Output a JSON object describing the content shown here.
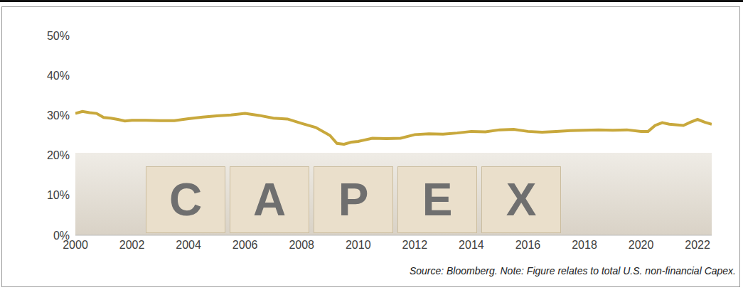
{
  "chart_data": {
    "type": "line",
    "annotation": "Source: Bloomberg.  Note: Figure relates to total U.S. non-financial Capex.",
    "watermark": "CAPEX",
    "x": [
      2000,
      2000.25,
      2000.5,
      2000.75,
      2001,
      2001.25,
      2001.5,
      2001.75,
      2002,
      2002.5,
      2003,
      2003.5,
      2004,
      2004.5,
      2005,
      2005.5,
      2006,
      2006.5,
      2007,
      2007.5,
      2008,
      2008.5,
      2009,
      2009.25,
      2009.5,
      2009.75,
      2010,
      2010.5,
      2011,
      2011.5,
      2012,
      2012.5,
      2013,
      2013.5,
      2014,
      2014.5,
      2015,
      2015.5,
      2016,
      2016.5,
      2017,
      2017.5,
      2018,
      2018.5,
      2019,
      2019.5,
      2020,
      2020.25,
      2020.5,
      2020.75,
      2021,
      2021.5,
      2021.75,
      2022,
      2022.25,
      2022.5
    ],
    "values": [
      30.5,
      31,
      30.7,
      30.5,
      29.5,
      29.3,
      29,
      28.6,
      28.8,
      28.8,
      28.7,
      28.7,
      29.2,
      29.6,
      29.9,
      30.1,
      30.5,
      30,
      29.3,
      29.1,
      28,
      27,
      25,
      23,
      22.8,
      23.3,
      23.5,
      24.3,
      24.2,
      24.3,
      25.2,
      25.4,
      25.3,
      25.6,
      26,
      25.9,
      26.4,
      26.5,
      26,
      25.8,
      26,
      26.2,
      26.3,
      26.4,
      26.3,
      26.4,
      26,
      26,
      27.5,
      28.2,
      27.8,
      27.5,
      28.3,
      29,
      28.3,
      27.8
    ],
    "color": "#c8a83c",
    "xlim": [
      2000,
      2022.5
    ],
    "xticks": [
      2000,
      2002,
      2004,
      2006,
      2008,
      2010,
      2012,
      2014,
      2016,
      2018,
      2020,
      2022
    ],
    "ylim": [
      0,
      50
    ],
    "yticks": [
      {
        "value": 0,
        "label": "0%"
      },
      {
        "value": 10,
        "label": "10%"
      },
      {
        "value": 20,
        "label": "20%"
      },
      {
        "value": 30,
        "label": "30%"
      },
      {
        "value": 40,
        "label": "40%"
      },
      {
        "value": 50,
        "label": "50%"
      }
    ],
    "grid": false
  }
}
